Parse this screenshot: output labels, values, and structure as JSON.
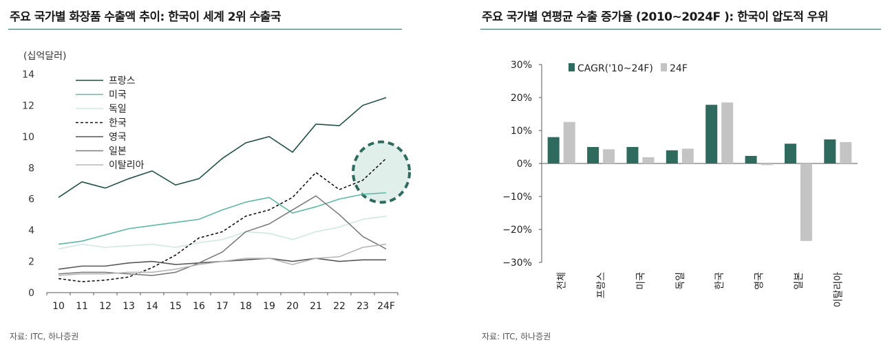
{
  "chart_data": [
    {
      "type": "line",
      "title": "주요 국가별 화장품 수출액 추이: 한국이 세계 2위 수출국",
      "unit_label": "(십억달러)",
      "ylim": [
        0,
        14
      ],
      "yticks": [
        0,
        2,
        4,
        6,
        8,
        10,
        12,
        14
      ],
      "x": [
        "10",
        "11",
        "12",
        "13",
        "14",
        "15",
        "16",
        "17",
        "18",
        "19",
        "20",
        "21",
        "22",
        "23",
        "24F"
      ],
      "series": [
        {
          "name": "프랑스",
          "color": "#1f4f46",
          "dash": "",
          "values": [
            6.1,
            7.1,
            6.7,
            7.3,
            7.8,
            6.9,
            7.3,
            8.6,
            9.6,
            10.0,
            9.0,
            10.8,
            10.7,
            12.0,
            12.5
          ]
        },
        {
          "name": "미국",
          "color": "#5cb8a6",
          "dash": "",
          "values": [
            3.1,
            3.3,
            3.7,
            4.1,
            4.3,
            4.5,
            4.7,
            5.3,
            5.8,
            6.1,
            5.1,
            5.5,
            6.0,
            6.3,
            6.4
          ]
        },
        {
          "name": "독일",
          "color": "#cfe8e1",
          "dash": "",
          "values": [
            2.8,
            3.1,
            2.9,
            3.0,
            3.1,
            2.9,
            3.2,
            3.4,
            3.9,
            3.8,
            3.4,
            3.9,
            4.2,
            4.7,
            4.9
          ]
        },
        {
          "name": "한국",
          "color": "#111111",
          "dash": "4,3",
          "values": [
            0.9,
            0.7,
            0.8,
            1.0,
            1.6,
            2.4,
            3.5,
            3.9,
            4.9,
            5.3,
            6.1,
            7.7,
            6.6,
            7.2,
            8.6
          ]
        },
        {
          "name": "영국",
          "color": "#555555",
          "dash": "",
          "values": [
            1.5,
            1.7,
            1.7,
            1.9,
            2.0,
            1.8,
            1.9,
            2.0,
            2.1,
            2.2,
            2.0,
            2.2,
            2.0,
            2.1,
            2.1
          ]
        },
        {
          "name": "일본",
          "color": "#7a7a7a",
          "dash": "",
          "values": [
            1.2,
            1.3,
            1.3,
            1.2,
            1.1,
            1.3,
            1.9,
            2.6,
            3.9,
            4.4,
            5.3,
            6.2,
            5.0,
            3.6,
            2.8
          ]
        },
        {
          "name": "이탈리아",
          "color": "#b5b5b5",
          "dash": "",
          "values": [
            1.1,
            1.2,
            1.2,
            1.3,
            1.3,
            1.5,
            1.8,
            2.0,
            2.2,
            2.2,
            1.8,
            2.2,
            2.3,
            2.9,
            3.1
          ]
        }
      ],
      "highlight": "dashed ellipse around 한국 2023–24F"
    },
    {
      "type": "bar",
      "title": "주요 국가별 연평균 수출 증가율 (2010~2024F ): 한국이 압도적 우위",
      "ylim": [
        -30,
        30
      ],
      "yticks": [
        30,
        20,
        10,
        0,
        -10,
        -20,
        -30
      ],
      "ytick_labels": [
        "30%",
        "20%",
        "10%",
        "0%",
        "−10%",
        "−20%",
        "−30%"
      ],
      "categories": [
        "전체",
        "프랑스",
        "미국",
        "독일",
        "한국",
        "영국",
        "일본",
        "이탈리아"
      ],
      "series": [
        {
          "name": "CAGR('10~24F)",
          "color": "#2e6b5e",
          "values": [
            8.0,
            5.0,
            5.0,
            4.0,
            17.8,
            2.3,
            6.0,
            7.3
          ]
        },
        {
          "name": "24F",
          "color": "#c4c4c4",
          "values": [
            12.6,
            4.3,
            1.9,
            4.5,
            18.5,
            -0.5,
            -23.5,
            6.5
          ]
        }
      ]
    }
  ],
  "footer": {
    "left_source": "자료: ITC, 하나증권",
    "right_source": "자료: ITC, 하나증권"
  }
}
